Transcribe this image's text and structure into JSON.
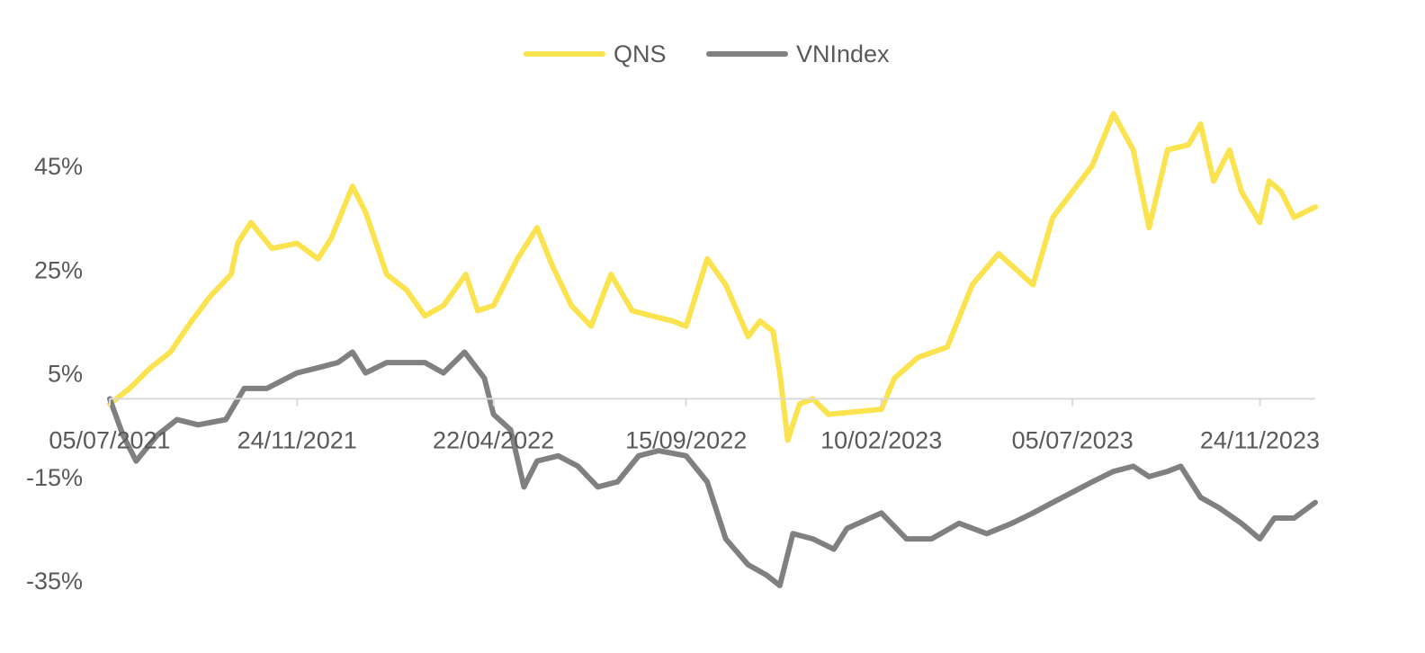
{
  "chart_data": {
    "type": "line",
    "title": "",
    "xlabel": "",
    "ylabel": "",
    "x_tick_labels": [
      "05/07/2021",
      "24/11/2021",
      "22/04/2022",
      "15/09/2022",
      "10/02/2023",
      "05/07/2023",
      "24/11/2023"
    ],
    "y_tick_labels": [
      "45%",
      "25%",
      "5%",
      "-15%",
      "-35%"
    ],
    "y_ticks": [
      45,
      25,
      5,
      -15,
      -35
    ],
    "ylim": [
      -35,
      55
    ],
    "xlim": [
      "05/07/2021",
      "05/01/2024"
    ],
    "grid": false,
    "legend_position": "top-center",
    "series": [
      {
        "name": "QNS",
        "color": "#FBE34F",
        "points": [
          [
            "05/07/2021",
            -1
          ],
          [
            "20/07/2021",
            2
          ],
          [
            "05/08/2021",
            6
          ],
          [
            "20/08/2021",
            9
          ],
          [
            "05/09/2021",
            15
          ],
          [
            "20/09/2021",
            20
          ],
          [
            "05/10/2021",
            24
          ],
          [
            "10/10/2021",
            30
          ],
          [
            "20/10/2021",
            34
          ],
          [
            "05/11/2021",
            29
          ],
          [
            "24/11/2021",
            30
          ],
          [
            "10/12/2021",
            27
          ],
          [
            "20/12/2021",
            31
          ],
          [
            "05/01/2022",
            41
          ],
          [
            "15/01/2022",
            36
          ],
          [
            "31/01/2022",
            24
          ],
          [
            "15/02/2022",
            21
          ],
          [
            "01/03/2022",
            16
          ],
          [
            "15/03/2022",
            18
          ],
          [
            "01/04/2022",
            24
          ],
          [
            "10/04/2022",
            17
          ],
          [
            "22/04/2022",
            18
          ],
          [
            "10/05/2022",
            27
          ],
          [
            "25/05/2022",
            33
          ],
          [
            "05/06/2022",
            26
          ],
          [
            "20/06/2022",
            18
          ],
          [
            "05/07/2022",
            14
          ],
          [
            "20/07/2022",
            24
          ],
          [
            "05/08/2022",
            17
          ],
          [
            "20/08/2022",
            16
          ],
          [
            "05/09/2022",
            15
          ],
          [
            "15/09/2022",
            14
          ],
          [
            "01/10/2022",
            27
          ],
          [
            "15/10/2022",
            22
          ],
          [
            "01/11/2022",
            12
          ],
          [
            "10/11/2022",
            15
          ],
          [
            "20/11/2022",
            13
          ],
          [
            "25/11/2022",
            5
          ],
          [
            "01/12/2022",
            -8
          ],
          [
            "10/12/2022",
            -1
          ],
          [
            "20/12/2022",
            0
          ],
          [
            "01/01/2023",
            -3
          ],
          [
            "10/02/2023",
            -2
          ],
          [
            "20/02/2023",
            4
          ],
          [
            "10/03/2023",
            8
          ],
          [
            "01/04/2023",
            10
          ],
          [
            "20/04/2023",
            22
          ],
          [
            "10/05/2023",
            28
          ],
          [
            "05/06/2023",
            22
          ],
          [
            "20/06/2023",
            35
          ],
          [
            "05/07/2023",
            40
          ],
          [
            "20/07/2023",
            45
          ],
          [
            "05/08/2023",
            55
          ],
          [
            "20/08/2023",
            48
          ],
          [
            "01/09/2023",
            33
          ],
          [
            "15/09/2023",
            48
          ],
          [
            "01/10/2023",
            49
          ],
          [
            "10/10/2023",
            53
          ],
          [
            "20/10/2023",
            42
          ],
          [
            "01/11/2023",
            48
          ],
          [
            "10/11/2023",
            40
          ],
          [
            "24/11/2023",
            34
          ],
          [
            "01/12/2023",
            42
          ],
          [
            "10/12/2023",
            40
          ],
          [
            "20/12/2023",
            35
          ],
          [
            "05/01/2024",
            37
          ]
        ]
      },
      {
        "name": "VNIndex",
        "color": "#808080",
        "points": [
          [
            "05/07/2021",
            0
          ],
          [
            "15/07/2021",
            -7
          ],
          [
            "25/07/2021",
            -12
          ],
          [
            "10/08/2021",
            -7
          ],
          [
            "25/08/2021",
            -4
          ],
          [
            "10/09/2021",
            -5
          ],
          [
            "01/10/2021",
            -4
          ],
          [
            "15/10/2021",
            2
          ],
          [
            "01/11/2021",
            2
          ],
          [
            "24/11/2021",
            5
          ],
          [
            "10/12/2021",
            6
          ],
          [
            "25/12/2021",
            7
          ],
          [
            "05/01/2022",
            9
          ],
          [
            "15/01/2022",
            5
          ],
          [
            "31/01/2022",
            7
          ],
          [
            "15/02/2022",
            7
          ],
          [
            "01/03/2022",
            7
          ],
          [
            "15/03/2022",
            5
          ],
          [
            "31/03/2022",
            9
          ],
          [
            "15/04/2022",
            4
          ],
          [
            "22/04/2022",
            -3
          ],
          [
            "05/05/2022",
            -6
          ],
          [
            "15/05/2022",
            -17
          ],
          [
            "25/05/2022",
            -12
          ],
          [
            "10/06/2022",
            -11
          ],
          [
            "25/06/2022",
            -13
          ],
          [
            "10/07/2022",
            -17
          ],
          [
            "25/07/2022",
            -16
          ],
          [
            "10/08/2022",
            -11
          ],
          [
            "25/08/2022",
            -10
          ],
          [
            "15/09/2022",
            -11
          ],
          [
            "01/10/2022",
            -16
          ],
          [
            "15/10/2022",
            -27
          ],
          [
            "01/11/2022",
            -32
          ],
          [
            "15/11/2022",
            -34
          ],
          [
            "25/11/2022",
            -36
          ],
          [
            "05/12/2022",
            -26
          ],
          [
            "20/12/2022",
            -27
          ],
          [
            "05/01/2023",
            -29
          ],
          [
            "15/01/2023",
            -25
          ],
          [
            "10/02/2023",
            -22
          ],
          [
            "01/03/2023",
            -27
          ],
          [
            "20/03/2023",
            -27
          ],
          [
            "10/04/2023",
            -24
          ],
          [
            "01/05/2023",
            -26
          ],
          [
            "20/05/2023",
            -24
          ],
          [
            "05/06/2023",
            -22
          ],
          [
            "20/06/2023",
            -20
          ],
          [
            "05/07/2023",
            -18
          ],
          [
            "20/07/2023",
            -16
          ],
          [
            "05/08/2023",
            -14
          ],
          [
            "20/08/2023",
            -13
          ],
          [
            "01/09/2023",
            -15
          ],
          [
            "15/09/2023",
            -14
          ],
          [
            "25/09/2023",
            -13
          ],
          [
            "10/10/2023",
            -19
          ],
          [
            "24/10/2023",
            -21
          ],
          [
            "10/11/2023",
            -24
          ],
          [
            "24/11/2023",
            -27
          ],
          [
            "05/12/2023",
            -23
          ],
          [
            "20/12/2023",
            -23
          ],
          [
            "05/01/2024",
            -20
          ]
        ]
      }
    ]
  }
}
